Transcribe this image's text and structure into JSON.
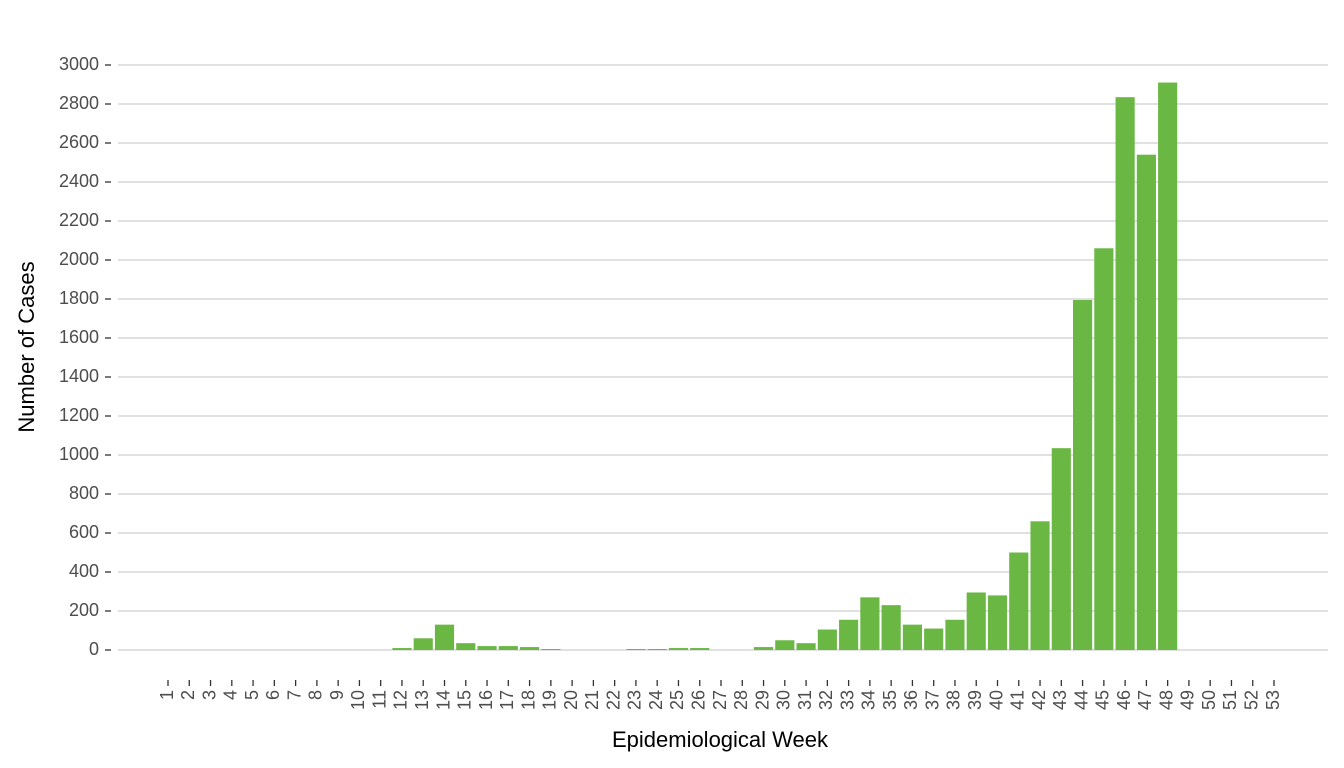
{
  "chart_data": {
    "type": "bar",
    "x_label": "Epidemiological Week",
    "y_label": "Number of Cases",
    "categories": [
      "1",
      "2",
      "3",
      "4",
      "5",
      "6",
      "7",
      "8",
      "9",
      "10",
      "11",
      "12",
      "13",
      "14",
      "15",
      "16",
      "17",
      "18",
      "19",
      "20",
      "21",
      "22",
      "23",
      "24",
      "25",
      "26",
      "27",
      "28",
      "29",
      "30",
      "31",
      "32",
      "33",
      "34",
      "35",
      "36",
      "37",
      "38",
      "39",
      "40",
      "41",
      "42",
      "43",
      "44",
      "45",
      "46",
      "47",
      "48",
      "49",
      "50",
      "51",
      "52",
      "53"
    ],
    "values": [
      0,
      0,
      0,
      0,
      0,
      0,
      0,
      0,
      0,
      0,
      0,
      10,
      60,
      130,
      35,
      20,
      20,
      15,
      5,
      0,
      0,
      0,
      5,
      5,
      10,
      10,
      0,
      0,
      15,
      50,
      35,
      105,
      155,
      270,
      230,
      130,
      110,
      155,
      295,
      280,
      500,
      660,
      1035,
      1795,
      2060,
      2835,
      2540,
      2910,
      0,
      0,
      0,
      0,
      0
    ],
    "color": "#6ab744",
    "ylim": [
      0,
      3000
    ],
    "yticks": [
      0,
      200,
      400,
      600,
      800,
      1000,
      1200,
      1400,
      1600,
      1800,
      2000,
      2200,
      2400,
      2600,
      2800,
      3000
    ],
    "grid": true
  }
}
